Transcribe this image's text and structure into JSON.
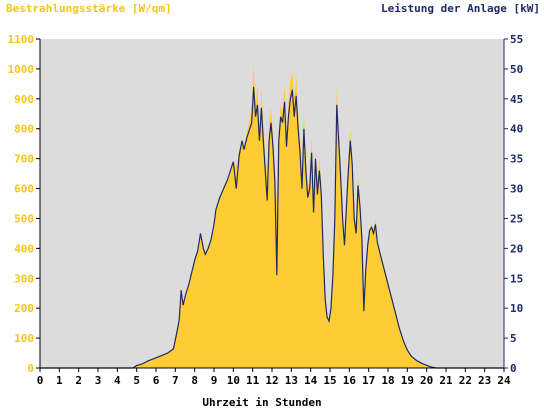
{
  "chart_data": {
    "type": "area",
    "title_left": "Bestrahlungsstärke [W/qm]",
    "title_right": "Leistung der Anlage [kW]",
    "xlabel": "Uhrzeit in Stunden",
    "xlim": [
      0,
      24
    ],
    "ylim_left": [
      0,
      1100
    ],
    "ylim_right": [
      0,
      55
    ],
    "x_ticks": [
      "0",
      "1",
      "2",
      "3",
      "4",
      "5",
      "6",
      "7",
      "8",
      "9",
      "10",
      "11",
      "12",
      "13",
      "14",
      "15",
      "16",
      "17",
      "18",
      "19",
      "20",
      "21",
      "22",
      "23",
      "24"
    ],
    "y_left_ticks": [
      "0",
      "100",
      "200",
      "300",
      "400",
      "500",
      "600",
      "700",
      "800",
      "900",
      "1000",
      "1100"
    ],
    "y_right_ticks": [
      "0",
      "5",
      "10",
      "15",
      "20",
      "25",
      "30",
      "35",
      "40",
      "45",
      "50",
      "55"
    ],
    "grid": false,
    "colors": {
      "irradiance_fill": "#ffcc33",
      "power_line": "#1f2a66",
      "plot_background": "#dcdcdc",
      "left_axis_text": "#f5c518",
      "right_axis_text": "#1f2a66"
    },
    "series": [
      {
        "axis": "left",
        "style": "area",
        "points": [
          [
            0,
            0
          ],
          [
            4.8,
            0
          ],
          [
            5.0,
            10
          ],
          [
            5.3,
            15
          ],
          [
            5.6,
            25
          ],
          [
            6.0,
            35
          ],
          [
            6.3,
            42
          ],
          [
            6.6,
            50
          ],
          [
            6.9,
            65
          ],
          [
            7.05,
            110
          ],
          [
            7.2,
            160
          ],
          [
            7.3,
            240
          ],
          [
            7.4,
            210
          ],
          [
            7.55,
            250
          ],
          [
            7.7,
            280
          ],
          [
            7.85,
            320
          ],
          [
            8.0,
            360
          ],
          [
            8.15,
            390
          ],
          [
            8.3,
            440
          ],
          [
            8.45,
            410
          ],
          [
            8.55,
            380
          ],
          [
            8.7,
            400
          ],
          [
            8.85,
            430
          ],
          [
            9.0,
            480
          ],
          [
            9.1,
            530
          ],
          [
            9.3,
            570
          ],
          [
            9.5,
            600
          ],
          [
            9.7,
            630
          ],
          [
            9.85,
            660
          ],
          [
            10.0,
            690
          ],
          [
            10.15,
            670
          ],
          [
            10.3,
            730
          ],
          [
            10.45,
            760
          ],
          [
            10.55,
            730
          ],
          [
            10.7,
            790
          ],
          [
            10.85,
            830
          ],
          [
            10.95,
            880
          ],
          [
            11.05,
            1010
          ],
          [
            11.15,
            880
          ],
          [
            11.25,
            950
          ],
          [
            11.35,
            760
          ],
          [
            11.45,
            930
          ],
          [
            11.55,
            820
          ],
          [
            11.65,
            720
          ],
          [
            11.75,
            640
          ],
          [
            11.85,
            820
          ],
          [
            11.95,
            870
          ],
          [
            12.05,
            780
          ],
          [
            12.15,
            650
          ],
          [
            12.25,
            550
          ],
          [
            12.35,
            800
          ],
          [
            12.45,
            880
          ],
          [
            12.55,
            860
          ],
          [
            12.65,
            950
          ],
          [
            12.75,
            780
          ],
          [
            12.85,
            880
          ],
          [
            12.95,
            960
          ],
          [
            13.05,
            990
          ],
          [
            13.15,
            900
          ],
          [
            13.25,
            980
          ],
          [
            13.35,
            850
          ],
          [
            13.45,
            770
          ],
          [
            13.55,
            650
          ],
          [
            13.65,
            860
          ],
          [
            13.75,
            700
          ],
          [
            13.85,
            600
          ],
          [
            13.95,
            640
          ],
          [
            14.05,
            780
          ],
          [
            14.15,
            560
          ],
          [
            14.25,
            740
          ],
          [
            14.35,
            620
          ],
          [
            14.45,
            700
          ],
          [
            14.55,
            620
          ],
          [
            14.65,
            400
          ],
          [
            14.75,
            250
          ],
          [
            14.85,
            180
          ],
          [
            14.95,
            160
          ],
          [
            15.05,
            200
          ],
          [
            15.15,
            320
          ],
          [
            15.25,
            520
          ],
          [
            15.35,
            940
          ],
          [
            15.45,
            800
          ],
          [
            15.55,
            680
          ],
          [
            15.65,
            520
          ],
          [
            15.75,
            420
          ],
          [
            15.85,
            560
          ],
          [
            15.95,
            700
          ],
          [
            16.05,
            800
          ],
          [
            16.15,
            720
          ],
          [
            16.25,
            520
          ],
          [
            16.35,
            470
          ],
          [
            16.45,
            640
          ],
          [
            16.55,
            560
          ],
          [
            16.65,
            450
          ],
          [
            16.75,
            200
          ],
          [
            16.85,
            340
          ],
          [
            16.95,
            420
          ],
          [
            17.05,
            470
          ],
          [
            17.15,
            480
          ],
          [
            17.25,
            460
          ],
          [
            17.35,
            500
          ],
          [
            17.45,
            430
          ],
          [
            17.6,
            380
          ],
          [
            17.8,
            330
          ],
          [
            18.0,
            280
          ],
          [
            18.2,
            230
          ],
          [
            18.4,
            180
          ],
          [
            18.6,
            130
          ],
          [
            18.8,
            90
          ],
          [
            19.0,
            60
          ],
          [
            19.2,
            40
          ],
          [
            19.5,
            25
          ],
          [
            19.8,
            15
          ],
          [
            20.2,
            5
          ],
          [
            20.5,
            0
          ],
          [
            24,
            0
          ]
        ]
      },
      {
        "axis": "right",
        "style": "line",
        "points": [
          [
            0,
            0
          ],
          [
            4.8,
            0
          ],
          [
            5.0,
            0.4
          ],
          [
            5.3,
            0.7
          ],
          [
            5.6,
            1.2
          ],
          [
            6.0,
            1.7
          ],
          [
            6.3,
            2.1
          ],
          [
            6.6,
            2.5
          ],
          [
            6.9,
            3.2
          ],
          [
            7.05,
            5.5
          ],
          [
            7.2,
            8.0
          ],
          [
            7.3,
            13.0
          ],
          [
            7.4,
            10.5
          ],
          [
            7.55,
            12.5
          ],
          [
            7.7,
            14.0
          ],
          [
            7.85,
            16.0
          ],
          [
            8.0,
            18.0
          ],
          [
            8.15,
            19.5
          ],
          [
            8.3,
            22.5
          ],
          [
            8.45,
            20.0
          ],
          [
            8.55,
            19.0
          ],
          [
            8.7,
            20.0
          ],
          [
            8.85,
            21.5
          ],
          [
            9.0,
            24.0
          ],
          [
            9.1,
            26.5
          ],
          [
            9.3,
            28.5
          ],
          [
            9.5,
            30.0
          ],
          [
            9.7,
            31.5
          ],
          [
            9.85,
            33.0
          ],
          [
            10.0,
            34.5
          ],
          [
            10.15,
            30.0
          ],
          [
            10.3,
            35.5
          ],
          [
            10.45,
            38.0
          ],
          [
            10.55,
            36.5
          ],
          [
            10.7,
            38.5
          ],
          [
            10.85,
            40.0
          ],
          [
            10.95,
            41.0
          ],
          [
            11.05,
            47.0
          ],
          [
            11.15,
            42.0
          ],
          [
            11.25,
            44.0
          ],
          [
            11.35,
            38.0
          ],
          [
            11.45,
            43.5
          ],
          [
            11.55,
            38.0
          ],
          [
            11.65,
            33.0
          ],
          [
            11.75,
            28.0
          ],
          [
            11.85,
            38.0
          ],
          [
            11.95,
            41.0
          ],
          [
            12.05,
            37.0
          ],
          [
            12.15,
            31.0
          ],
          [
            12.25,
            15.5
          ],
          [
            12.35,
            38.0
          ],
          [
            12.45,
            42.0
          ],
          [
            12.55,
            41.0
          ],
          [
            12.65,
            44.5
          ],
          [
            12.75,
            37.0
          ],
          [
            12.85,
            42.0
          ],
          [
            12.95,
            45.0
          ],
          [
            13.05,
            46.5
          ],
          [
            13.15,
            42.0
          ],
          [
            13.25,
            45.5
          ],
          [
            13.35,
            40.0
          ],
          [
            13.45,
            36.0
          ],
          [
            13.55,
            30.0
          ],
          [
            13.65,
            40.0
          ],
          [
            13.75,
            33.0
          ],
          [
            13.85,
            28.5
          ],
          [
            13.95,
            30.0
          ],
          [
            14.05,
            36.0
          ],
          [
            14.15,
            26.0
          ],
          [
            14.25,
            35.0
          ],
          [
            14.35,
            29.0
          ],
          [
            14.45,
            33.0
          ],
          [
            14.55,
            29.0
          ],
          [
            14.65,
            19.0
          ],
          [
            14.75,
            11.5
          ],
          [
            14.85,
            8.5
          ],
          [
            14.95,
            7.8
          ],
          [
            15.05,
            10.0
          ],
          [
            15.15,
            15.5
          ],
          [
            15.25,
            25.0
          ],
          [
            15.35,
            44.0
          ],
          [
            15.45,
            38.0
          ],
          [
            15.55,
            32.0
          ],
          [
            15.65,
            25.0
          ],
          [
            15.75,
            20.5
          ],
          [
            15.85,
            27.0
          ],
          [
            15.95,
            33.0
          ],
          [
            16.05,
            38.0
          ],
          [
            16.15,
            34.0
          ],
          [
            16.25,
            25.0
          ],
          [
            16.35,
            22.5
          ],
          [
            16.45,
            30.5
          ],
          [
            16.55,
            27.0
          ],
          [
            16.65,
            21.5
          ],
          [
            16.75,
            9.5
          ],
          [
            16.85,
            16.5
          ],
          [
            16.95,
            20.5
          ],
          [
            17.05,
            23.0
          ],
          [
            17.15,
            23.5
          ],
          [
            17.25,
            22.5
          ],
          [
            17.35,
            24.0
          ],
          [
            17.45,
            21.0
          ],
          [
            17.6,
            19.0
          ],
          [
            17.8,
            16.5
          ],
          [
            18.0,
            14.0
          ],
          [
            18.2,
            11.5
          ],
          [
            18.4,
            9.0
          ],
          [
            18.6,
            6.5
          ],
          [
            18.8,
            4.5
          ],
          [
            19.0,
            3.0
          ],
          [
            19.2,
            2.0
          ],
          [
            19.5,
            1.2
          ],
          [
            19.8,
            0.7
          ],
          [
            20.2,
            0.2
          ],
          [
            20.5,
            0
          ],
          [
            24,
            0
          ]
        ]
      }
    ]
  }
}
